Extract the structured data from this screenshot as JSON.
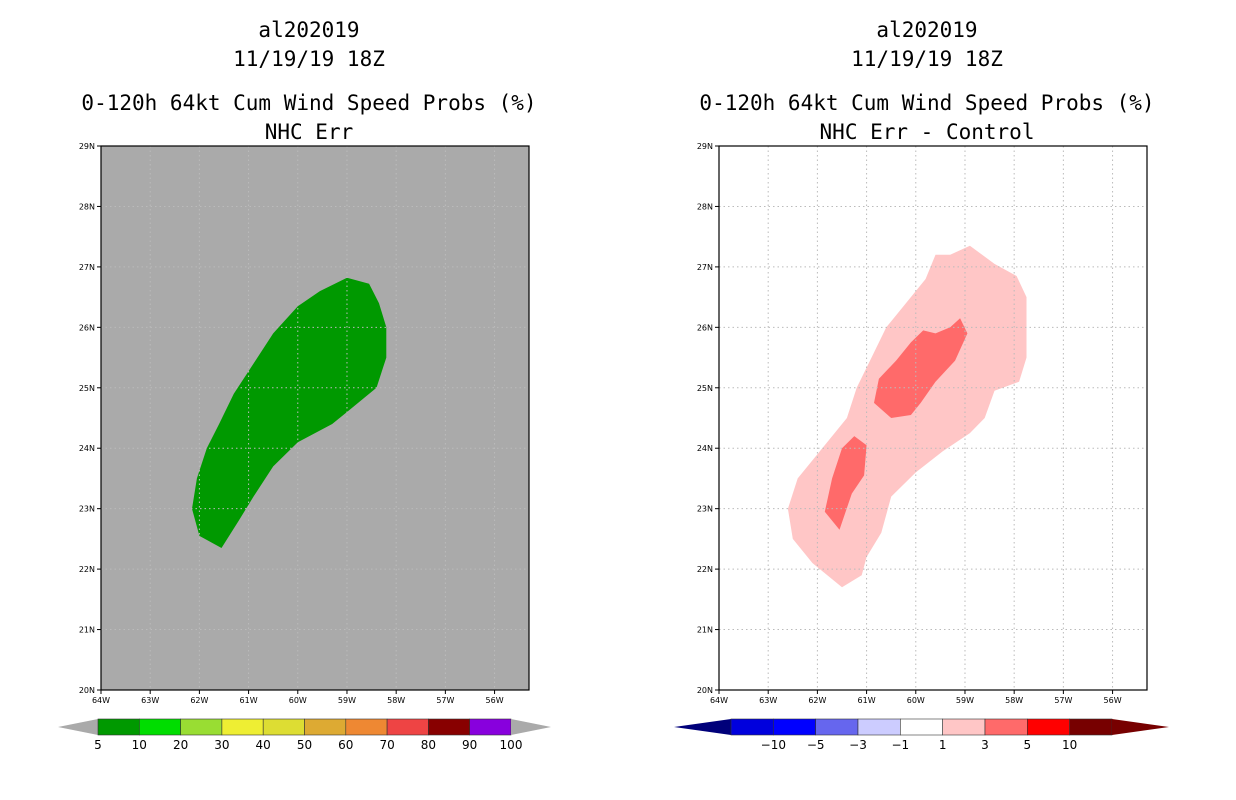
{
  "panels": [
    {
      "id": "left",
      "title_lines": [
        "al202019",
        "11/19/19 18Z",
        "0-120h 64kt Cum Wind Speed Probs (%)",
        "NHC Err"
      ],
      "colorbar": {
        "levels": [
          "5",
          "10",
          "20",
          "30",
          "40",
          "50",
          "60",
          "70",
          "80",
          "90",
          "100"
        ],
        "colors": [
          "#009900",
          "#00dd00",
          "#99dd33",
          "#eeee33",
          "#dddd33",
          "#ddaa33",
          "#ee8833",
          "#ee4444",
          "#880000",
          "#8800dd"
        ],
        "under_color": "#aaaaaa",
        "over_color": "#aaaaaa"
      }
    },
    {
      "id": "right",
      "title_lines": [
        "al202019",
        "11/19/19 18Z",
        "0-120h 64kt Cum Wind Speed Probs (%)",
        "NHC Err - Control"
      ],
      "colorbar": {
        "levels": [
          "-10",
          "-5",
          "-3",
          "-1",
          "1",
          "3",
          "5",
          "10"
        ],
        "colors": [
          "#0000dd",
          "#0000ff",
          "#6666ee",
          "#ccccff",
          "#ffffff",
          "#ffc6c6",
          "#ff6a6a",
          "#ff0000",
          "#770000"
        ],
        "under_color": "#00007a",
        "over_color": "#770000"
      }
    }
  ],
  "chart_data": [
    {
      "type": "contour-map",
      "panel": "left",
      "title": "0-120h 64kt Cum Wind Speed Probs (%)",
      "subtitle": "NHC Err",
      "storm": "al202019",
      "valid_time": "11/19/19 18Z",
      "background_color": "#aaaaaa",
      "grid": true,
      "xlim": [
        -64.0,
        -55.3
      ],
      "ylim": [
        20,
        29
      ],
      "x_ticks": [
        -64,
        -63,
        -62,
        -61,
        -60,
        -59,
        -58,
        -57,
        -56
      ],
      "x_tick_labels": [
        "64W",
        "63W",
        "62W",
        "61W",
        "60W",
        "59W",
        "58W",
        "57W",
        "56W"
      ],
      "y_ticks": [
        20,
        21,
        22,
        23,
        24,
        25,
        26,
        27,
        28,
        29
      ],
      "y_tick_labels": [
        "20N",
        "21N",
        "22N",
        "23N",
        "24N",
        "25N",
        "26N",
        "27N",
        "28N",
        "29N"
      ],
      "regions": [
        {
          "label": "5-10%",
          "color": "#009900",
          "lonlat": [
            [
              -61.55,
              22.35
            ],
            [
              -62.0,
              22.55
            ],
            [
              -62.15,
              23.0
            ],
            [
              -62.05,
              23.5
            ],
            [
              -61.85,
              24.0
            ],
            [
              -61.6,
              24.4
            ],
            [
              -61.3,
              24.9
            ],
            [
              -60.9,
              25.4
            ],
            [
              -60.5,
              25.9
            ],
            [
              -60.0,
              26.35
            ],
            [
              -59.55,
              26.6
            ],
            [
              -59.0,
              26.82
            ],
            [
              -58.55,
              26.72
            ],
            [
              -58.35,
              26.4
            ],
            [
              -58.2,
              26.0
            ],
            [
              -58.2,
              25.5
            ],
            [
              -58.4,
              25.0
            ],
            [
              -59.0,
              24.6
            ],
            [
              -59.3,
              24.4
            ],
            [
              -60.0,
              24.1
            ],
            [
              -60.5,
              23.7
            ],
            [
              -60.9,
              23.2
            ],
            [
              -61.2,
              22.8
            ]
          ]
        }
      ]
    },
    {
      "type": "contour-map",
      "panel": "right",
      "title": "0-120h 64kt Cum Wind Speed Probs (%)",
      "subtitle": "NHC Err - Control",
      "storm": "al202019",
      "valid_time": "11/19/19 18Z",
      "background_color": "#ffffff",
      "grid": true,
      "xlim": [
        -64.0,
        -55.3
      ],
      "ylim": [
        20,
        29
      ],
      "x_ticks": [
        -64,
        -63,
        -62,
        -61,
        -60,
        -59,
        -58,
        -57,
        -56
      ],
      "x_tick_labels": [
        "64W",
        "63W",
        "62W",
        "61W",
        "60W",
        "59W",
        "58W",
        "57W",
        "56W"
      ],
      "y_ticks": [
        20,
        21,
        22,
        23,
        24,
        25,
        26,
        27,
        28,
        29
      ],
      "y_tick_labels": [
        "20N",
        "21N",
        "22N",
        "23N",
        "24N",
        "25N",
        "26N",
        "27N",
        "28N",
        "29N"
      ],
      "regions": [
        {
          "label": "1-3",
          "color": "#ffc6c6",
          "lonlat": [
            [
              -61.5,
              21.7
            ],
            [
              -62.1,
              22.1
            ],
            [
              -62.5,
              22.5
            ],
            [
              -62.6,
              23.0
            ],
            [
              -62.4,
              23.5
            ],
            [
              -62.0,
              23.9
            ],
            [
              -61.4,
              24.5
            ],
            [
              -61.2,
              25.0
            ],
            [
              -60.9,
              25.5
            ],
            [
              -60.6,
              26.0
            ],
            [
              -60.2,
              26.4
            ],
            [
              -59.8,
              26.8
            ],
            [
              -59.6,
              27.2
            ],
            [
              -59.3,
              27.2
            ],
            [
              -58.9,
              27.35
            ],
            [
              -58.4,
              27.05
            ],
            [
              -57.95,
              26.85
            ],
            [
              -57.75,
              26.5
            ],
            [
              -57.75,
              26.0
            ],
            [
              -57.75,
              25.5
            ],
            [
              -57.9,
              25.1
            ],
            [
              -58.4,
              24.95
            ],
            [
              -58.6,
              24.5
            ],
            [
              -58.9,
              24.25
            ],
            [
              -59.45,
              23.95
            ],
            [
              -60.0,
              23.6
            ],
            [
              -60.5,
              23.2
            ],
            [
              -60.7,
              22.6
            ],
            [
              -61.0,
              22.2
            ],
            [
              -61.1,
              21.9
            ]
          ]
        },
        {
          "label": "3-5",
          "color": "#ff6a6a",
          "lonlat": [
            [
              -61.55,
              22.65
            ],
            [
              -61.85,
              22.95
            ],
            [
              -61.7,
              23.5
            ],
            [
              -61.5,
              24.0
            ],
            [
              -61.25,
              24.2
            ],
            [
              -61.0,
              24.05
            ],
            [
              -61.05,
              23.55
            ],
            [
              -61.3,
              23.25
            ]
          ]
        },
        {
          "label": "3-5",
          "color": "#ff6a6a",
          "lonlat": [
            [
              -60.5,
              24.5
            ],
            [
              -60.85,
              24.75
            ],
            [
              -60.75,
              25.15
            ],
            [
              -60.4,
              25.45
            ],
            [
              -60.1,
              25.75
            ],
            [
              -59.85,
              25.95
            ],
            [
              -59.6,
              25.9
            ],
            [
              -59.3,
              26.0
            ],
            [
              -59.1,
              26.15
            ],
            [
              -58.95,
              25.9
            ],
            [
              -59.2,
              25.45
            ],
            [
              -59.6,
              25.1
            ],
            [
              -59.9,
              24.75
            ],
            [
              -60.1,
              24.55
            ]
          ]
        }
      ]
    }
  ]
}
